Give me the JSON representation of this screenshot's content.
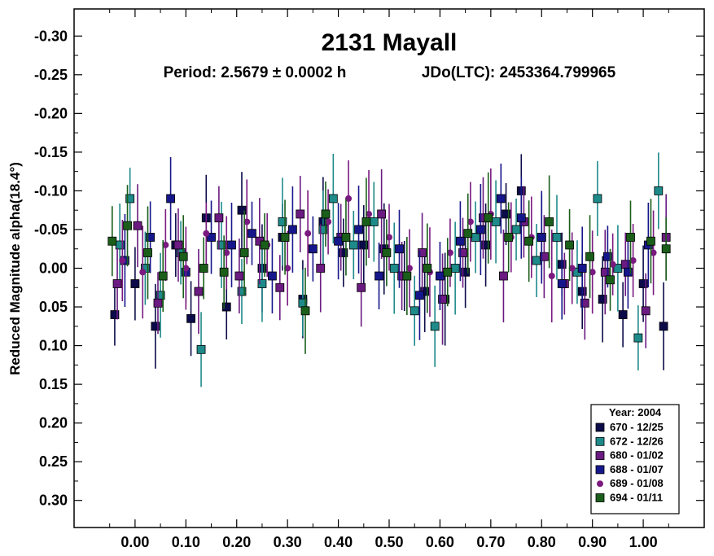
{
  "chart_data": {
    "type": "scatter",
    "title": "2131 Mayall",
    "subtitle_period": "Period: 2.5679 ± 0.0002 h",
    "subtitle_epoch": "JDo(LTC): 2453364.799965",
    "xlabel": "",
    "ylabel": "Reduced Magnitude alpha(18.4°)",
    "xlim": [
      -0.12,
      1.12
    ],
    "ylim": [
      0.335,
      -0.335
    ],
    "y_inverted": true,
    "x_ticks": [
      0.0,
      0.1,
      0.2,
      0.3,
      0.4,
      0.5,
      0.6,
      0.7,
      0.8,
      0.9,
      1.0
    ],
    "x_tick_labels": [
      "0.00",
      "0.10",
      "0.20",
      "0.30",
      "0.40",
      "0.50",
      "0.60",
      "0.70",
      "0.80",
      "0.90",
      "1.00"
    ],
    "y_ticks": [
      -0.3,
      -0.25,
      -0.2,
      -0.15,
      -0.1,
      -0.05,
      0.0,
      0.05,
      0.1,
      0.15,
      0.2,
      0.25,
      0.3
    ],
    "y_tick_labels": [
      "-0.30",
      "-0.25",
      "-0.20",
      "-0.15",
      "-0.10",
      "-0.05",
      "0.00",
      "0.05",
      "0.10",
      "0.15",
      "0.20",
      "0.25",
      "0.30"
    ],
    "grid": false,
    "legend_title": "Year: 2004",
    "legend_position": "bottom-right",
    "series": [
      {
        "name": "670 - 12/25",
        "color": "#0b0b4a",
        "marker": "square",
        "x": [
          -0.04,
          0.0,
          0.04,
          0.08,
          0.11,
          0.14,
          0.18,
          0.21,
          0.25,
          0.29,
          0.33,
          0.37,
          0.41,
          0.45,
          0.49,
          0.53,
          0.57,
          0.61,
          0.65,
          0.69,
          0.73,
          0.76,
          0.8,
          0.84,
          0.88,
          0.92,
          0.96,
          1.0,
          1.04
        ],
        "y": [
          0.06,
          0.02,
          0.075,
          -0.03,
          0.065,
          -0.065,
          0.05,
          -0.075,
          0.0,
          -0.04,
          0.04,
          -0.06,
          -0.02,
          -0.03,
          -0.025,
          0.01,
          0.03,
          0.04,
          0.005,
          -0.03,
          -0.07,
          -0.1,
          -0.04,
          -0.005,
          0.03,
          0.04,
          0.06,
          0.02,
          0.075
        ]
      },
      {
        "name": "672 - 12/26",
        "color": "#1e8a8a",
        "marker": "square",
        "x": [
          -0.03,
          -0.01,
          0.02,
          0.05,
          0.09,
          0.13,
          0.17,
          0.21,
          0.25,
          0.29,
          0.33,
          0.37,
          0.39,
          0.43,
          0.47,
          0.51,
          0.55,
          0.59,
          0.63,
          0.67,
          0.71,
          0.75,
          0.79,
          0.83,
          0.87,
          0.91,
          0.95,
          0.99,
          1.03
        ],
        "y": [
          -0.03,
          -0.09,
          0.0,
          0.035,
          -0.02,
          0.105,
          -0.03,
          0.03,
          0.02,
          -0.06,
          0.045,
          -0.05,
          -0.09,
          -0.03,
          -0.06,
          0.0,
          0.055,
          0.075,
          0.0,
          -0.04,
          -0.06,
          -0.05,
          -0.01,
          -0.04,
          0.005,
          -0.09,
          0.0,
          0.09,
          -0.1
        ]
      },
      {
        "name": "680 - 01/02",
        "color": "#6a1a80",
        "marker": "square",
        "x": [
          -0.035,
          0.005,
          0.045,
          0.085,
          0.125,
          0.165,
          0.205,
          0.245,
          0.285,
          0.325,
          0.365,
          0.405,
          0.445,
          0.485,
          0.525,
          0.565,
          0.605,
          0.645,
          0.685,
          0.725,
          0.765,
          0.805,
          0.845,
          0.885,
          0.925,
          0.965,
          1.005,
          1.045
        ],
        "y": [
          0.02,
          -0.055,
          0.045,
          -0.03,
          0.03,
          -0.065,
          0.01,
          -0.035,
          0.025,
          -0.07,
          0.0,
          -0.04,
          0.025,
          -0.07,
          0.01,
          -0.02,
          0.04,
          -0.02,
          -0.065,
          0.01,
          -0.06,
          -0.015,
          0.02,
          0.045,
          0.005,
          -0.005,
          0.055,
          -0.04
        ]
      },
      {
        "name": "688 - 01/07",
        "color": "#16168c",
        "marker": "square",
        "x": [
          -0.02,
          0.03,
          0.07,
          0.1,
          0.15,
          0.19,
          0.23,
          0.27,
          0.31,
          0.35,
          0.4,
          0.44,
          0.48,
          0.52,
          0.56,
          0.6,
          0.64,
          0.68,
          0.72,
          0.76,
          0.8,
          0.84,
          0.88,
          0.93,
          0.97,
          1.01
        ],
        "y": [
          -0.01,
          -0.04,
          -0.09,
          0.005,
          -0.04,
          -0.03,
          -0.045,
          0.01,
          -0.05,
          -0.025,
          -0.035,
          -0.05,
          0.01,
          -0.025,
          0.035,
          0.01,
          -0.035,
          -0.05,
          -0.09,
          -0.065,
          -0.04,
          0.02,
          0.0,
          -0.015,
          0.005,
          -0.03
        ]
      },
      {
        "name": "689 - 01/08",
        "color": "#7a1a80",
        "marker": "circle",
        "x": [
          -0.025,
          0.015,
          0.06,
          0.1,
          0.14,
          0.18,
          0.22,
          0.26,
          0.3,
          0.34,
          0.38,
          0.42,
          0.46,
          0.5,
          0.54,
          0.58,
          0.62,
          0.66,
          0.7,
          0.74,
          0.78,
          0.82,
          0.86,
          0.9,
          0.94,
          0.98,
          1.02
        ],
        "y": [
          -0.01,
          0.005,
          -0.03,
          0.0,
          -0.045,
          -0.02,
          -0.06,
          -0.03,
          0.0,
          -0.045,
          -0.06,
          -0.09,
          -0.07,
          -0.04,
          0.0,
          0.005,
          -0.02,
          -0.06,
          -0.07,
          -0.04,
          -0.04,
          0.01,
          0.0,
          0.005,
          -0.005,
          -0.01,
          -0.02
        ]
      },
      {
        "name": "694 - 01/11",
        "color": "#1a5e1a",
        "marker": "square",
        "x": [
          -0.045,
          -0.015,
          0.025,
          0.055,
          0.095,
          0.135,
          0.175,
          0.215,
          0.255,
          0.295,
          0.335,
          0.375,
          0.415,
          0.455,
          0.495,
          0.535,
          0.575,
          0.615,
          0.655,
          0.695,
          0.735,
          0.775,
          0.815,
          0.855,
          0.895,
          0.935,
          0.975,
          1.015,
          1.045
        ],
        "y": [
          -0.035,
          -0.055,
          -0.02,
          0.01,
          -0.015,
          0.0,
          0.005,
          -0.02,
          -0.03,
          -0.04,
          0.055,
          -0.07,
          -0.04,
          -0.06,
          -0.02,
          0.01,
          0.0,
          0.005,
          -0.045,
          -0.065,
          -0.04,
          -0.035,
          -0.06,
          -0.03,
          -0.015,
          0.015,
          -0.04,
          -0.035,
          -0.025
        ]
      }
    ]
  }
}
